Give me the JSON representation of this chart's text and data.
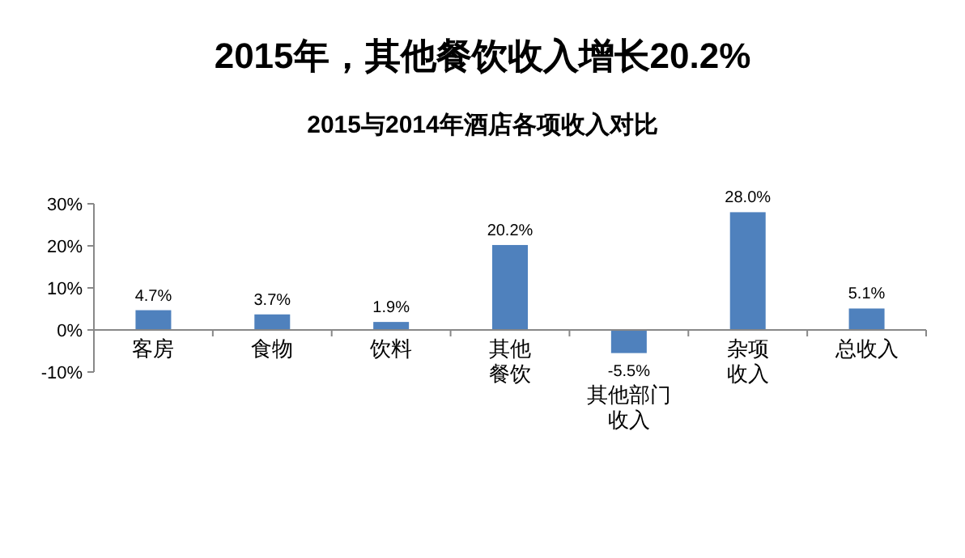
{
  "chart_data": {
    "type": "bar",
    "title": "2015年，其他餐饮收入增长20.2%",
    "subtitle": "2015与2014年酒店各项收入对比",
    "categories": [
      "客房",
      "食物",
      "饮料",
      "其他餐饮",
      "其他部门收入",
      "杂项收入",
      "总收入"
    ],
    "values": [
      4.7,
      3.7,
      1.9,
      20.2,
      -5.5,
      28.0,
      5.1
    ],
    "value_labels": [
      "4.7%",
      "3.7%",
      "1.9%",
      "20.2%",
      "-5.5%",
      "28.0%",
      "5.1%"
    ],
    "color": "#4f81bd",
    "ylim": [
      -10,
      30
    ],
    "yticks": [
      {
        "value": -10,
        "label": "-10%"
      },
      {
        "value": 0,
        "label": "0%"
      },
      {
        "value": 10,
        "label": "10%"
      },
      {
        "value": 20,
        "label": "20%"
      },
      {
        "value": 30,
        "label": "30%"
      }
    ],
    "grid": false
  }
}
